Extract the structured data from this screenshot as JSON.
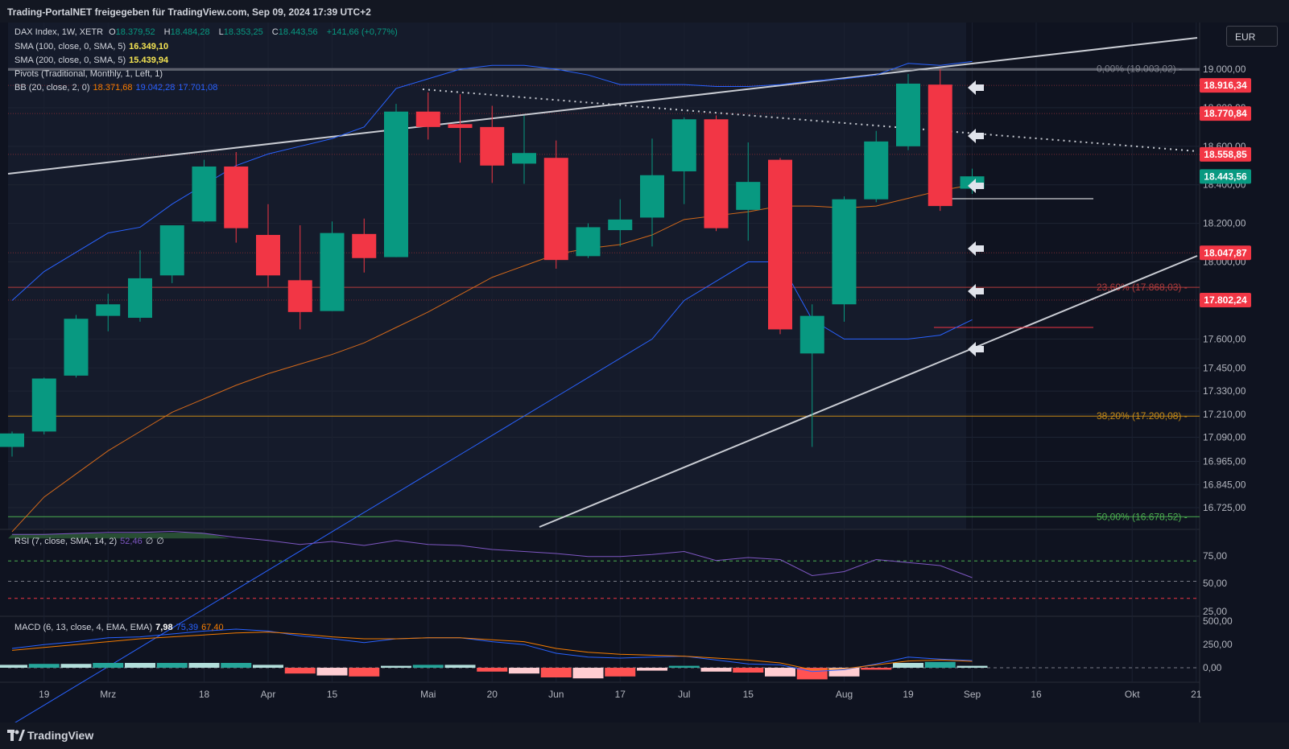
{
  "header": {
    "text": "Trading-PortalNET freigegeben für TradingView.com, Sep 09, 2024 17:39 UTC+2"
  },
  "currency_button": "EUR",
  "footer": {
    "brand": "TradingView"
  },
  "legend": {
    "symbol": "DAX Index, 1W, XETR",
    "o_label": "O",
    "o": "18.379,52",
    "h_label": "H",
    "h": "18.484,28",
    "l_label": "L",
    "l": "18.353,25",
    "c_label": "C",
    "c": "18.443,56",
    "change": "+141,66 (+0,77%)",
    "sma100": "SMA (100, close, 0, SMA, 5)",
    "sma100_val": "16.349,10",
    "sma200": "SMA (200, close, 0, SMA, 5)",
    "sma200_val": "15.439,94",
    "pivots": "Pivots (Traditional, Monthly, 1, Left, 1)",
    "bb": "BB (20, close, 2, 0)",
    "bb_mid": "18.371,68",
    "bb_up": "19.042,28",
    "bb_low": "17.701,08",
    "rsi": "RSI (7, close, SMA, 14, 2)",
    "rsi_val": "52,46",
    "rsi_z1": "∅",
    "rsi_z2": "∅",
    "macd": "MACD (6, 13, close, 4, EMA, EMA)",
    "macd_val": "7,98",
    "macd_sig": "75,39",
    "macd_sig2": "67,40"
  },
  "colors": {
    "up": "#089981",
    "down": "#f23645",
    "bg": "#0f1320",
    "bb": "#2962ff",
    "sma": "#f57c00",
    "rsi": "#7e57c2"
  },
  "chart_data": {
    "type": "candlestick",
    "title": "DAX Index, 1W, XETR",
    "price_axis_labels": [
      "19.000,00",
      "18.800,00",
      "18.600,00",
      "18.400,00",
      "18.200,00",
      "18.000,00",
      "17.600,00",
      "17.450,00",
      "17.330,00",
      "17.210,00",
      "17.090,00",
      "16.965,00",
      "16.845,00",
      "16.725,00"
    ],
    "price_axis_values": [
      19000,
      18800,
      18600,
      18400,
      18200,
      18000,
      17600,
      17450,
      17330,
      17210,
      17090,
      16965,
      16845,
      16725
    ],
    "x_ticks": [
      {
        "label": "19",
        "i": 1
      },
      {
        "label": "Mrz",
        "i": 3
      },
      {
        "label": "18",
        "i": 6
      },
      {
        "label": "Apr",
        "i": 8
      },
      {
        "label": "15",
        "i": 10
      },
      {
        "label": "Mai",
        "i": 13
      },
      {
        "label": "20",
        "i": 15
      },
      {
        "label": "Jun",
        "i": 17
      },
      {
        "label": "17",
        "i": 19
      },
      {
        "label": "Jul",
        "i": 21
      },
      {
        "label": "15",
        "i": 23
      },
      {
        "label": "Aug",
        "i": 26
      },
      {
        "label": "19",
        "i": 28
      },
      {
        "label": "Sep",
        "i": 30
      },
      {
        "label": "16",
        "i": 32
      },
      {
        "label": "Okt",
        "i": 35
      },
      {
        "label": "21",
        "i": 37
      }
    ],
    "candles": [
      {
        "o": 17040,
        "h": 17120,
        "l": 16990,
        "c": 17110
      },
      {
        "o": 17120,
        "h": 17400,
        "l": 17105,
        "c": 17395
      },
      {
        "o": 17410,
        "h": 17725,
        "l": 17400,
        "c": 17705
      },
      {
        "o": 17720,
        "h": 17835,
        "l": 17640,
        "c": 17780
      },
      {
        "o": 17710,
        "h": 18060,
        "l": 17690,
        "c": 17915
      },
      {
        "o": 17930,
        "h": 18170,
        "l": 17890,
        "c": 18190
      },
      {
        "o": 18210,
        "h": 18530,
        "l": 18205,
        "c": 18495
      },
      {
        "o": 18495,
        "h": 18570,
        "l": 18100,
        "c": 18175
      },
      {
        "o": 18140,
        "h": 18300,
        "l": 17870,
        "c": 17930
      },
      {
        "o": 17905,
        "h": 18190,
        "l": 17650,
        "c": 17740
      },
      {
        "o": 17745,
        "h": 18210,
        "l": 17745,
        "c": 18150
      },
      {
        "o": 18145,
        "h": 18225,
        "l": 17945,
        "c": 18020
      },
      {
        "o": 18025,
        "h": 18820,
        "l": 18025,
        "c": 18780
      },
      {
        "o": 18780,
        "h": 18880,
        "l": 18635,
        "c": 18700
      },
      {
        "o": 18715,
        "h": 18870,
        "l": 18515,
        "c": 18695
      },
      {
        "o": 18700,
        "h": 18810,
        "l": 18410,
        "c": 18500
      },
      {
        "o": 18510,
        "h": 18760,
        "l": 18405,
        "c": 18565
      },
      {
        "o": 18540,
        "h": 18630,
        "l": 17965,
        "c": 18010
      },
      {
        "o": 18030,
        "h": 18200,
        "l": 18020,
        "c": 18180
      },
      {
        "o": 18165,
        "h": 18325,
        "l": 18080,
        "c": 18220
      },
      {
        "o": 18230,
        "h": 18640,
        "l": 18080,
        "c": 18450
      },
      {
        "o": 18470,
        "h": 18750,
        "l": 18300,
        "c": 18740
      },
      {
        "o": 18740,
        "h": 18760,
        "l": 18160,
        "c": 18175
      },
      {
        "o": 18270,
        "h": 18620,
        "l": 18110,
        "c": 18415
      },
      {
        "o": 18530,
        "h": 18540,
        "l": 17625,
        "c": 17650
      },
      {
        "o": 17525,
        "h": 17780,
        "l": 17040,
        "c": 17720
      },
      {
        "o": 17780,
        "h": 18340,
        "l": 17690,
        "c": 18325
      },
      {
        "o": 18325,
        "h": 18680,
        "l": 18310,
        "c": 18625
      },
      {
        "o": 18600,
        "h": 18975,
        "l": 18580,
        "c": 18925
      },
      {
        "o": 18920,
        "h": 19000,
        "l": 18265,
        "c": 18290
      },
      {
        "o": 18380,
        "h": 18484,
        "l": 18353,
        "c": 18444
      }
    ],
    "sma_line": [
      16600,
      16780,
      16900,
      17020,
      17120,
      17220,
      17290,
      17360,
      17420,
      17470,
      17520,
      17580,
      17660,
      17740,
      17830,
      17920,
      17980,
      18040,
      18070,
      18090,
      18140,
      18220,
      18240,
      18260,
      18290,
      18290,
      18280,
      18290,
      18330,
      18370,
      18400
    ],
    "bb_upper": [
      17800,
      17950,
      18050,
      18150,
      18180,
      18300,
      18400,
      18500,
      18560,
      18600,
      18640,
      18700,
      18900,
      18950,
      19000,
      19020,
      19020,
      19000,
      18970,
      18920,
      18920,
      18920,
      18910,
      18910,
      18920,
      18940,
      18950,
      18970,
      19030,
      19020,
      19040
    ],
    "bb_lower": [
      15600,
      15700,
      15800,
      15900,
      16000,
      16100,
      16200,
      16300,
      16400,
      16500,
      16600,
      16700,
      16800,
      16900,
      17000,
      17100,
      17200,
      17300,
      17400,
      17500,
      17600,
      17800,
      17900,
      18000,
      18000,
      17700,
      17600,
      17600,
      17600,
      17620,
      17700
    ],
    "levels": [
      {
        "name": "0,00% (19.003,02)",
        "value": 19003,
        "color": "#787b86"
      },
      {
        "name": "23,60% (17.868,03)",
        "value": 17868,
        "color": "#b33c3c"
      },
      {
        "name": "38,20% (17.200,08)",
        "value": 17200,
        "color": "#c58a17"
      },
      {
        "name": "50,00% (16.678,52)",
        "value": 16678,
        "color": "#4caf50"
      }
    ],
    "price_tags": [
      {
        "label": "18.916,34",
        "value": 18916,
        "color": "#f23645"
      },
      {
        "label": "18.770,84",
        "value": 18770,
        "color": "#f23645"
      },
      {
        "label": "18.558,85",
        "value": 18558,
        "color": "#f23645"
      },
      {
        "label": "18.443,56",
        "value": 18443,
        "color": "#089981"
      },
      {
        "label": "18.047,87",
        "value": 18047,
        "color": "#f23645"
      },
      {
        "label": "17.802,24",
        "value": 17802,
        "color": "#f23645"
      }
    ],
    "rsi": {
      "levels": [
        "75,00",
        "50,00",
        "25,00"
      ],
      "values": [
        95,
        95,
        96,
        97,
        97,
        98,
        96,
        92,
        89,
        85,
        88,
        84,
        89,
        85,
        84,
        80,
        78,
        76,
        73,
        73,
        75,
        78,
        69,
        72,
        70,
        54,
        58,
        70,
        67,
        64,
        52
      ]
    },
    "macd": {
      "labels": [
        "500,00",
        "250,00",
        "0,00"
      ],
      "macd": [
        200,
        240,
        270,
        310,
        320,
        350,
        380,
        400,
        380,
        330,
        300,
        260,
        300,
        310,
        310,
        270,
        240,
        150,
        110,
        100,
        110,
        120,
        80,
        40,
        30,
        -40,
        -20,
        40,
        110,
        90,
        75
      ],
      "signal": [
        180,
        210,
        240,
        270,
        300,
        320,
        340,
        360,
        370,
        350,
        320,
        300,
        300,
        310,
        310,
        290,
        270,
        200,
        160,
        140,
        130,
        120,
        100,
        80,
        50,
        -20,
        -10,
        30,
        70,
        80,
        67
      ],
      "hist": [
        30,
        40,
        40,
        50,
        50,
        50,
        50,
        50,
        30,
        -60,
        -80,
        -90,
        20,
        30,
        30,
        -40,
        -60,
        -100,
        -110,
        -90,
        -30,
        20,
        -40,
        -50,
        -90,
        -120,
        -90,
        -20,
        50,
        60,
        20
      ]
    }
  }
}
